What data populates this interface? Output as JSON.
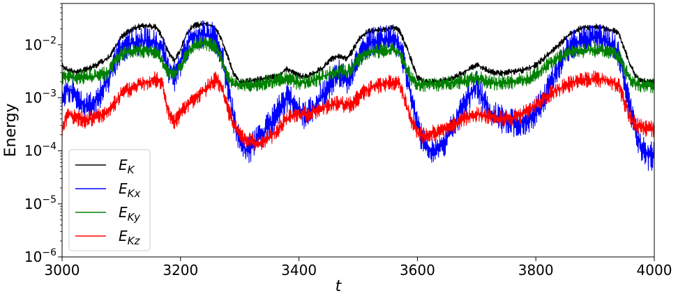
{
  "chart_data": {
    "type": "line",
    "xlabel": "t",
    "ylabel": "Energy",
    "xlim": [
      3000,
      4000
    ],
    "ylim": [
      1e-06,
      0.06
    ],
    "yscale": "log",
    "grid": false,
    "legend_position": "lower-left",
    "x_ticks": [
      "3000",
      "3200",
      "3400",
      "3600",
      "3800",
      "4000"
    ],
    "y_ticks": [
      {
        "base": "10",
        "exp": "−2"
      },
      {
        "base": "10",
        "exp": "−3"
      },
      {
        "base": "10",
        "exp": "−4"
      },
      {
        "base": "10",
        "exp": "−5"
      },
      {
        "base": "10",
        "exp": "−6"
      }
    ],
    "x": [
      3000,
      3010,
      3020,
      3030,
      3040,
      3050,
      3060,
      3070,
      3080,
      3090,
      3100,
      3110,
      3120,
      3130,
      3140,
      3150,
      3160,
      3170,
      3180,
      3190,
      3200,
      3210,
      3220,
      3230,
      3240,
      3250,
      3260,
      3270,
      3280,
      3290,
      3300,
      3310,
      3320,
      3330,
      3340,
      3350,
      3360,
      3370,
      3380,
      3390,
      3400,
      3410,
      3420,
      3430,
      3440,
      3450,
      3460,
      3470,
      3480,
      3490,
      3500,
      3510,
      3520,
      3530,
      3540,
      3550,
      3560,
      3570,
      3580,
      3590,
      3600,
      3610,
      3620,
      3630,
      3640,
      3650,
      3660,
      3670,
      3680,
      3690,
      3700,
      3710,
      3720,
      3730,
      3740,
      3750,
      3760,
      3770,
      3780,
      3790,
      3800,
      3810,
      3820,
      3830,
      3840,
      3850,
      3860,
      3870,
      3880,
      3890,
      3900,
      3910,
      3920,
      3930,
      3940,
      3950,
      3960,
      3970,
      3980,
      3990,
      4000
    ],
    "series": [
      {
        "name": "E_K",
        "label_main": "E",
        "label_sub": "K",
        "color": "#000000",
        "values": [
          0.004,
          0.0033,
          0.0031,
          0.0032,
          0.0034,
          0.0037,
          0.0043,
          0.0049,
          0.006,
          0.009,
          0.014,
          0.017,
          0.02,
          0.022,
          0.023,
          0.022,
          0.021,
          0.013,
          0.007,
          0.005,
          0.008,
          0.016,
          0.022,
          0.024,
          0.025,
          0.023,
          0.02,
          0.012,
          0.006,
          0.0028,
          0.002,
          0.002,
          0.0021,
          0.0022,
          0.0023,
          0.0024,
          0.0026,
          0.0029,
          0.0035,
          0.003,
          0.0026,
          0.0025,
          0.0027,
          0.0031,
          0.0037,
          0.0048,
          0.0058,
          0.0062,
          0.0055,
          0.0075,
          0.012,
          0.016,
          0.018,
          0.0185,
          0.019,
          0.02,
          0.021,
          0.018,
          0.01,
          0.005,
          0.0024,
          0.002,
          0.002,
          0.002,
          0.0021,
          0.0022,
          0.0024,
          0.0027,
          0.0031,
          0.0036,
          0.0043,
          0.0037,
          0.0032,
          0.003,
          0.0029,
          0.003,
          0.0031,
          0.0032,
          0.0034,
          0.0037,
          0.0042,
          0.0052,
          0.0065,
          0.008,
          0.01,
          0.0135,
          0.0165,
          0.019,
          0.021,
          0.0215,
          0.022,
          0.0215,
          0.02,
          0.0185,
          0.016,
          0.008,
          0.004,
          0.0025,
          0.0021,
          0.002,
          0.002
        ]
      },
      {
        "name": "E_Kx",
        "label_main": "E",
        "label_sub": "Kx",
        "color": "#0000ff",
        "values": [
          0.001,
          0.0015,
          0.0013,
          0.0009,
          0.0007,
          0.0007,
          0.001,
          0.0015,
          0.0025,
          0.005,
          0.0085,
          0.01,
          0.011,
          0.0115,
          0.012,
          0.0115,
          0.011,
          0.008,
          0.0035,
          0.0025,
          0.0045,
          0.009,
          0.014,
          0.0155,
          0.016,
          0.015,
          0.013,
          0.006,
          0.0015,
          0.0004,
          0.00015,
          0.0001,
          0.00012,
          0.00016,
          0.00022,
          0.0003,
          0.00045,
          0.0007,
          0.001,
          0.0008,
          0.0006,
          0.00045,
          0.00055,
          0.0008,
          0.0011,
          0.0016,
          0.0024,
          0.003,
          0.002,
          0.003,
          0.006,
          0.009,
          0.011,
          0.0115,
          0.012,
          0.0125,
          0.013,
          0.01,
          0.0035,
          0.001,
          0.0003,
          0.00015,
          0.00011,
          0.0001,
          0.00012,
          0.00018,
          0.0003,
          0.0005,
          0.0008,
          0.0012,
          0.0018,
          0.001,
          0.0006,
          0.00045,
          0.0004,
          0.00038,
          0.00035,
          0.00034,
          0.00036,
          0.00042,
          0.00055,
          0.0008,
          0.0014,
          0.0025,
          0.0042,
          0.007,
          0.0095,
          0.011,
          0.0125,
          0.013,
          0.0135,
          0.013,
          0.0115,
          0.01,
          0.007,
          0.002,
          0.0006,
          0.0002,
          0.0001,
          8e-05,
          8e-05
        ]
      },
      {
        "name": "E_Ky",
        "label_main": "E",
        "label_sub": "Ky",
        "color": "#008000",
        "values": [
          0.0023,
          0.0025,
          0.0024,
          0.0024,
          0.0025,
          0.0025,
          0.0026,
          0.0028,
          0.0032,
          0.005,
          0.0065,
          0.0072,
          0.0075,
          0.0077,
          0.0078,
          0.0076,
          0.0072,
          0.0048,
          0.003,
          0.0028,
          0.0038,
          0.0065,
          0.009,
          0.01,
          0.0105,
          0.01,
          0.009,
          0.005,
          0.0024,
          0.0018,
          0.0017,
          0.0017,
          0.0017,
          0.0018,
          0.0019,
          0.002,
          0.0021,
          0.0022,
          0.0023,
          0.0021,
          0.0019,
          0.0019,
          0.002,
          0.0022,
          0.0025,
          0.0028,
          0.003,
          0.0031,
          0.003,
          0.0035,
          0.005,
          0.0065,
          0.0072,
          0.0075,
          0.0077,
          0.0078,
          0.008,
          0.007,
          0.004,
          0.0022,
          0.0018,
          0.0018,
          0.0018,
          0.0018,
          0.0018,
          0.0019,
          0.0019,
          0.002,
          0.0021,
          0.0022,
          0.0024,
          0.0022,
          0.002,
          0.0019,
          0.0019,
          0.0019,
          0.002,
          0.0021,
          0.0022,
          0.0024,
          0.0028,
          0.0034,
          0.0042,
          0.005,
          0.0058,
          0.0066,
          0.0072,
          0.0076,
          0.0078,
          0.0079,
          0.008,
          0.0078,
          0.0075,
          0.007,
          0.006,
          0.0035,
          0.0022,
          0.0018,
          0.0017,
          0.0017,
          0.0017
        ]
      },
      {
        "name": "E_Kz",
        "label_main": "E",
        "label_sub": "Kz",
        "color": "#ff0000",
        "values": [
          0.00025,
          0.0005,
          0.00045,
          0.0004,
          0.00038,
          0.0004,
          0.00045,
          0.0005,
          0.0006,
          0.0008,
          0.0012,
          0.0014,
          0.0016,
          0.0018,
          0.002,
          0.0021,
          0.0022,
          0.0018,
          0.0005,
          0.00035,
          0.0005,
          0.0007,
          0.0009,
          0.0011,
          0.0014,
          0.0018,
          0.0022,
          0.0015,
          0.0006,
          0.0003,
          0.0002,
          0.00016,
          0.00015,
          0.00014,
          0.00015,
          0.00018,
          0.00022,
          0.0003,
          0.0004,
          0.00045,
          0.0005,
          0.00048,
          0.00052,
          0.00058,
          0.00065,
          0.00072,
          0.00075,
          0.0008,
          0.0007,
          0.0008,
          0.001,
          0.0013,
          0.0015,
          0.0017,
          0.0018,
          0.0019,
          0.002,
          0.0018,
          0.0008,
          0.00035,
          0.00022,
          0.0002,
          0.00021,
          0.00022,
          0.00024,
          0.00026,
          0.0003,
          0.00034,
          0.0004,
          0.00045,
          0.0005,
          0.00048,
          0.00045,
          0.00042,
          0.0004,
          0.0004,
          0.00042,
          0.00045,
          0.0005,
          0.0006,
          0.00075,
          0.0009,
          0.0011,
          0.0013,
          0.0015,
          0.0017,
          0.0019,
          0.0021,
          0.0022,
          0.00225,
          0.0023,
          0.00225,
          0.00215,
          0.002,
          0.0017,
          0.0008,
          0.0004,
          0.0003,
          0.00027,
          0.00026,
          0.00026
        ]
      }
    ]
  }
}
